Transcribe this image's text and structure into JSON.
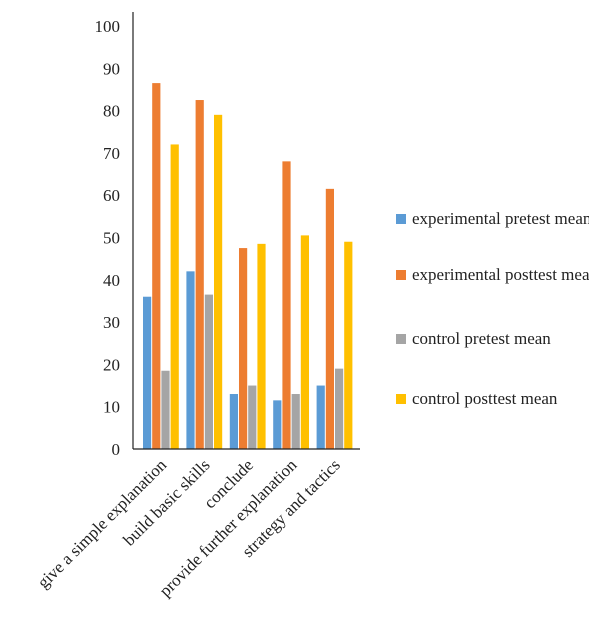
{
  "chart_data": {
    "type": "bar",
    "categories": [
      "give a simple explanation",
      "build basic skills",
      "conclude",
      "provide further explanation",
      "strategy and tactics"
    ],
    "series": [
      {
        "name": "experimental pretest mean",
        "color": "#5B9BD5",
        "values": [
          36,
          42,
          13,
          11.5,
          15
        ]
      },
      {
        "name": "experimental posttest mean",
        "color": "#ED7D31",
        "values": [
          86.5,
          82.5,
          47.5,
          68,
          61.5
        ]
      },
      {
        "name": "control pretest mean",
        "color": "#A5A5A5",
        "values": [
          18.5,
          36.5,
          15,
          13,
          19
        ]
      },
      {
        "name": "control posttest mean",
        "color": "#FFC000",
        "values": [
          72,
          79,
          48.5,
          50.5,
          49
        ]
      }
    ],
    "yticks": [
      "0",
      "10",
      "20",
      "30",
      "40",
      "50",
      "60",
      "70",
      "80",
      "90",
      "100"
    ],
    "ylim": [
      0,
      100
    ],
    "grid": false,
    "legend_position": "right"
  }
}
